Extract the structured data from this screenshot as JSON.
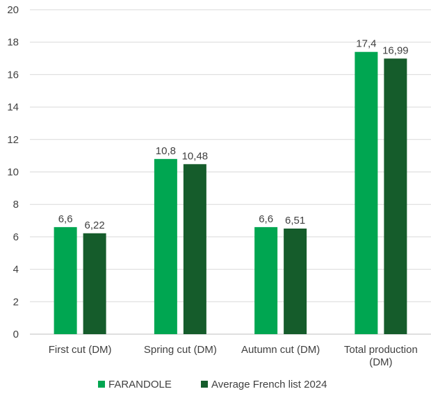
{
  "chart_data": {
    "type": "bar",
    "categories": [
      "First cut (DM)",
      "Spring cut (DM)",
      "Autumn cut (DM)",
      "Total production (DM)"
    ],
    "series": [
      {
        "name": "FARANDOLE",
        "values": [
          6.6,
          10.8,
          6.6,
          17.4
        ],
        "labels": [
          "6,6",
          "10,8",
          "6,6",
          "17,4"
        ],
        "color": "#00a651"
      },
      {
        "name": "Average French list 2024",
        "values": [
          6.22,
          10.48,
          6.51,
          16.99
        ],
        "labels": [
          "6,22",
          "10,48",
          "6,51",
          "16,99"
        ],
        "color": "#155c2b"
      }
    ],
    "ylim": [
      0,
      20
    ],
    "yticks": [
      0,
      2,
      4,
      6,
      8,
      10,
      12,
      14,
      16,
      18,
      20
    ],
    "grid": true,
    "legend": "bottom-center"
  }
}
